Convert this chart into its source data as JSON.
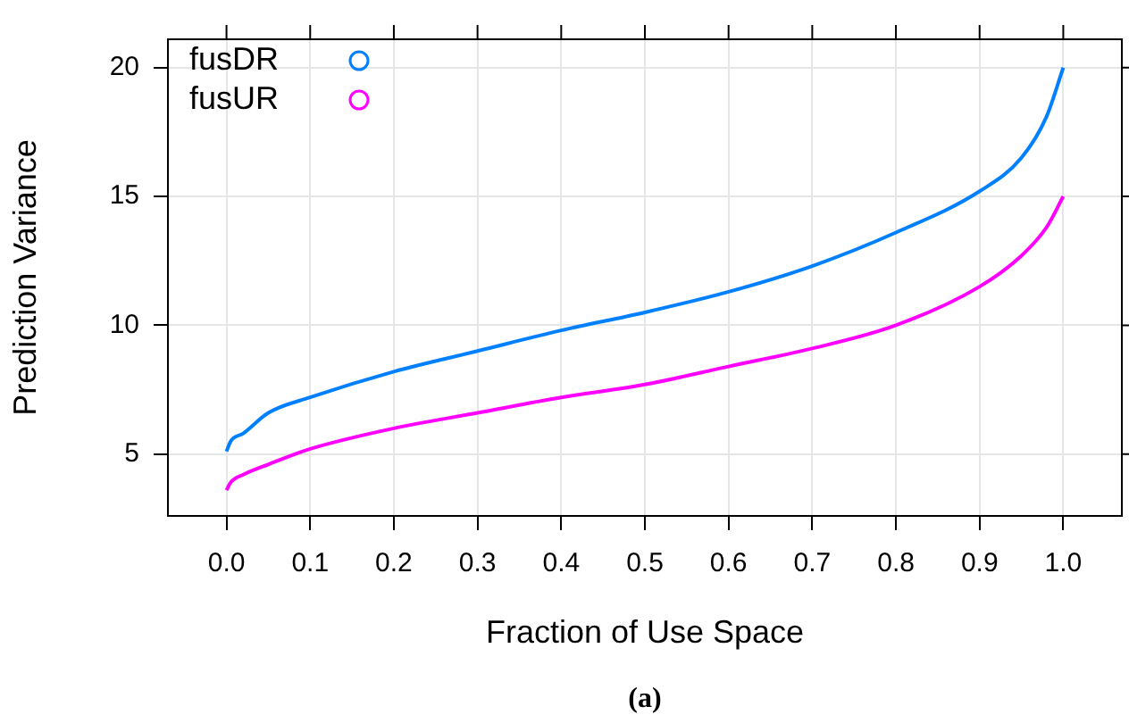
{
  "chart_data": {
    "type": "line",
    "xlabel": "Fraction of Use Space",
    "ylabel": "Prediction Variance",
    "annotations": [
      "(a)"
    ],
    "xlim": [
      -0.07,
      1.07
    ],
    "ylim": [
      2.6,
      21.1
    ],
    "xticks": [
      {
        "value": 0,
        "label": "0.0"
      },
      0.1,
      0.2,
      0.3,
      0.4,
      0.5,
      0.6,
      0.7,
      0.8,
      0.9,
      {
        "value": 1,
        "label": "1.0"
      }
    ],
    "yticks": [
      5,
      10,
      15,
      20
    ],
    "grid": true,
    "legend": "top left",
    "line_style": "solid",
    "series": [
      {
        "name": "fusDR",
        "color": "#0080ff",
        "x": [
          0,
          0.005,
          0.02,
          0.05,
          0.1,
          0.2,
          0.3,
          0.4,
          0.5,
          0.6,
          0.7,
          0.8,
          0.9,
          0.95,
          0.98,
          1
        ],
        "values": [
          5.1,
          5.5,
          5.8,
          6.6,
          7.2,
          8.2,
          9.0,
          9.8,
          10.5,
          11.3,
          12.3,
          13.6,
          15.2,
          16.5,
          18.1,
          20
        ]
      },
      {
        "name": "fusUR",
        "color": "#ff00ff",
        "x": [
          0,
          0.005,
          0.02,
          0.05,
          0.1,
          0.2,
          0.3,
          0.4,
          0.5,
          0.6,
          0.7,
          0.8,
          0.9,
          0.95,
          0.98,
          1
        ],
        "values": [
          3.6,
          3.9,
          4.2,
          4.6,
          5.2,
          6.0,
          6.6,
          7.2,
          7.7,
          8.4,
          9.1,
          10.0,
          11.5,
          12.7,
          13.8,
          15
        ]
      }
    ]
  }
}
